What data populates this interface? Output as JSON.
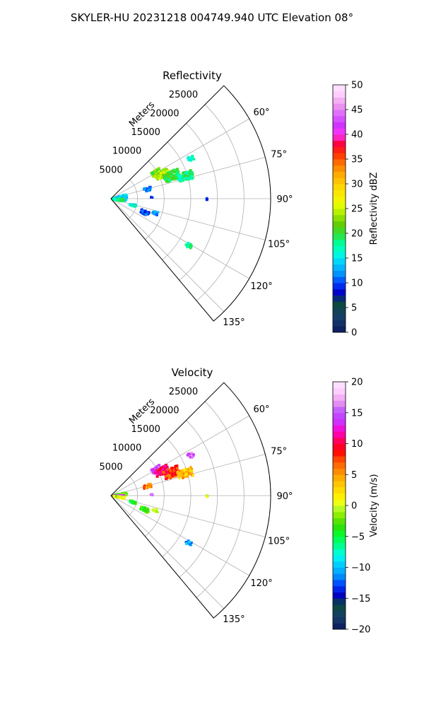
{
  "figure": {
    "title": "SKYLER-HU  20231218  004749.940 UTC Elevation 08°"
  },
  "chart_data": [
    {
      "type": "polar-sector",
      "title": "Reflectivity",
      "range_label": "Meters",
      "range_ticks": [
        "5000",
        "10000",
        "15000",
        "20000",
        "25000"
      ],
      "angle_ticks": [
        "60°",
        "75°",
        "90°",
        "105°",
        "120°",
        "135°"
      ],
      "angle_range_deg": [
        45,
        140
      ],
      "range_max_m": 30000,
      "colorbar": {
        "label": "Reflectivity dBZ",
        "min": 0,
        "max": 50,
        "ticks": [
          "0",
          "5",
          "10",
          "15",
          "20",
          "25",
          "30",
          "35",
          "40",
          "45",
          "50"
        ]
      },
      "echoes": [
        {
          "az": 60,
          "r": 9800,
          "ext_r": 1800,
          "ext_az": 6,
          "value": 22
        },
        {
          "az": 64,
          "r": 10600,
          "ext_r": 2600,
          "ext_az": 7,
          "value": 24
        },
        {
          "az": 69,
          "r": 12200,
          "ext_r": 3000,
          "ext_az": 8,
          "value": 20
        },
        {
          "az": 73,
          "r": 14600,
          "ext_r": 2800,
          "ext_az": 6,
          "value": 18
        },
        {
          "az": 63,
          "r": 16800,
          "ext_r": 1200,
          "ext_az": 3,
          "value": 17
        },
        {
          "az": 75,
          "r": 7000,
          "ext_r": 1400,
          "ext_az": 5,
          "value": 12
        },
        {
          "az": 85,
          "r": 1600,
          "ext_r": 2600,
          "ext_az": 25,
          "value": 14
        },
        {
          "az": 95,
          "r": 1300,
          "ext_r": 2000,
          "ext_az": 12,
          "value": 18
        },
        {
          "az": 88,
          "r": 7600,
          "ext_r": 400,
          "ext_az": 2,
          "value": 10
        },
        {
          "az": 106,
          "r": 4200,
          "ext_r": 1200,
          "ext_az": 5,
          "value": 16
        },
        {
          "az": 112,
          "r": 6800,
          "ext_r": 1600,
          "ext_az": 6,
          "value": 10
        },
        {
          "az": 108,
          "r": 8700,
          "ext_r": 1000,
          "ext_az": 4,
          "value": 11
        },
        {
          "az": 121,
          "r": 17000,
          "ext_r": 1200,
          "ext_az": 3,
          "value": 18
        },
        {
          "az": 90,
          "r": 18000,
          "ext_r": 200,
          "ext_az": 1,
          "value": 10
        }
      ]
    },
    {
      "type": "polar-sector",
      "title": "Velocity",
      "range_label": "Meters",
      "range_ticks": [
        "5000",
        "10000",
        "15000",
        "20000",
        "25000"
      ],
      "angle_ticks": [
        "60°",
        "75°",
        "90°",
        "105°",
        "120°",
        "135°"
      ],
      "angle_range_deg": [
        45,
        140
      ],
      "range_max_m": 30000,
      "colorbar": {
        "label": "Velocity (m/s)",
        "min": -20,
        "max": 20,
        "ticks": [
          "−20",
          "−15",
          "−10",
          "−5",
          "0",
          "5",
          "10",
          "15",
          "20"
        ]
      },
      "echoes": [
        {
          "az": 60,
          "r": 9800,
          "ext_r": 1800,
          "ext_az": 6,
          "value": 14
        },
        {
          "az": 64,
          "r": 10600,
          "ext_r": 2600,
          "ext_az": 7,
          "value": 11
        },
        {
          "az": 69,
          "r": 12200,
          "ext_r": 3000,
          "ext_az": 8,
          "value": 8
        },
        {
          "az": 73,
          "r": 14600,
          "ext_r": 2800,
          "ext_az": 6,
          "value": 4
        },
        {
          "az": 63,
          "r": 16800,
          "ext_r": 1200,
          "ext_az": 3,
          "value": 15
        },
        {
          "az": 75,
          "r": 7000,
          "ext_r": 1400,
          "ext_az": 5,
          "value": 6
        },
        {
          "az": 82,
          "r": 1600,
          "ext_r": 2600,
          "ext_az": 10,
          "value": -2
        },
        {
          "az": 90,
          "r": 1400,
          "ext_r": 2000,
          "ext_az": 8,
          "value": 14
        },
        {
          "az": 98,
          "r": 1500,
          "ext_r": 2000,
          "ext_az": 8,
          "value": 0
        },
        {
          "az": 88,
          "r": 7600,
          "ext_r": 400,
          "ext_az": 2,
          "value": 15
        },
        {
          "az": 106,
          "r": 4200,
          "ext_r": 1200,
          "ext_az": 5,
          "value": -4
        },
        {
          "az": 112,
          "r": 6800,
          "ext_r": 1600,
          "ext_az": 6,
          "value": -3
        },
        {
          "az": 108,
          "r": 8700,
          "ext_r": 1000,
          "ext_az": 4,
          "value": 1
        },
        {
          "az": 121,
          "r": 17000,
          "ext_r": 1200,
          "ext_az": 3,
          "value": -11
        },
        {
          "az": 90,
          "r": 18000,
          "ext_r": 200,
          "ext_az": 1,
          "value": 0
        }
      ]
    }
  ]
}
